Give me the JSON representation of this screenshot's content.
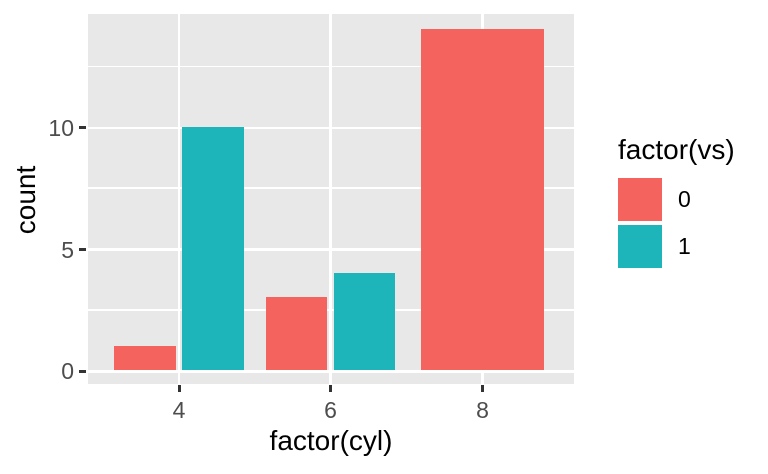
{
  "chart_data": {
    "type": "bar",
    "bar_mode": "dodge",
    "title": "",
    "xlabel": "factor(cyl)",
    "ylabel": "count",
    "categories": [
      "4",
      "6",
      "8"
    ],
    "series": [
      {
        "name": "0",
        "color": "#F4635D",
        "values": [
          1,
          3,
          14
        ]
      },
      {
        "name": "1",
        "color": "#1DB4BA",
        "values": [
          10,
          4,
          0
        ]
      }
    ],
    "legend": {
      "title": "factor(vs)",
      "position": "right",
      "entries": [
        {
          "label": "0",
          "color": "#F4635D"
        },
        {
          "label": "1",
          "color": "#1DB4BA"
        }
      ]
    },
    "y_axis": {
      "label": "count",
      "major_ticks": [
        0,
        5,
        10
      ],
      "minor_ticks": [
        2.5,
        7.5,
        12.5
      ],
      "range": [
        -0.7,
        14.7
      ]
    },
    "x_axis": {
      "label": "factor(cyl)",
      "tick_labels": [
        "4",
        "6",
        "8"
      ]
    },
    "style": {
      "panel_background": "#E8E8E8",
      "grid_color": "#FFFFFF",
      "plot_background": "#FFFFFF",
      "axis_text_color": "#4D4D4D",
      "axis_title_color": "#000000",
      "tick_mark_color": "#333333"
    },
    "grid": true
  }
}
